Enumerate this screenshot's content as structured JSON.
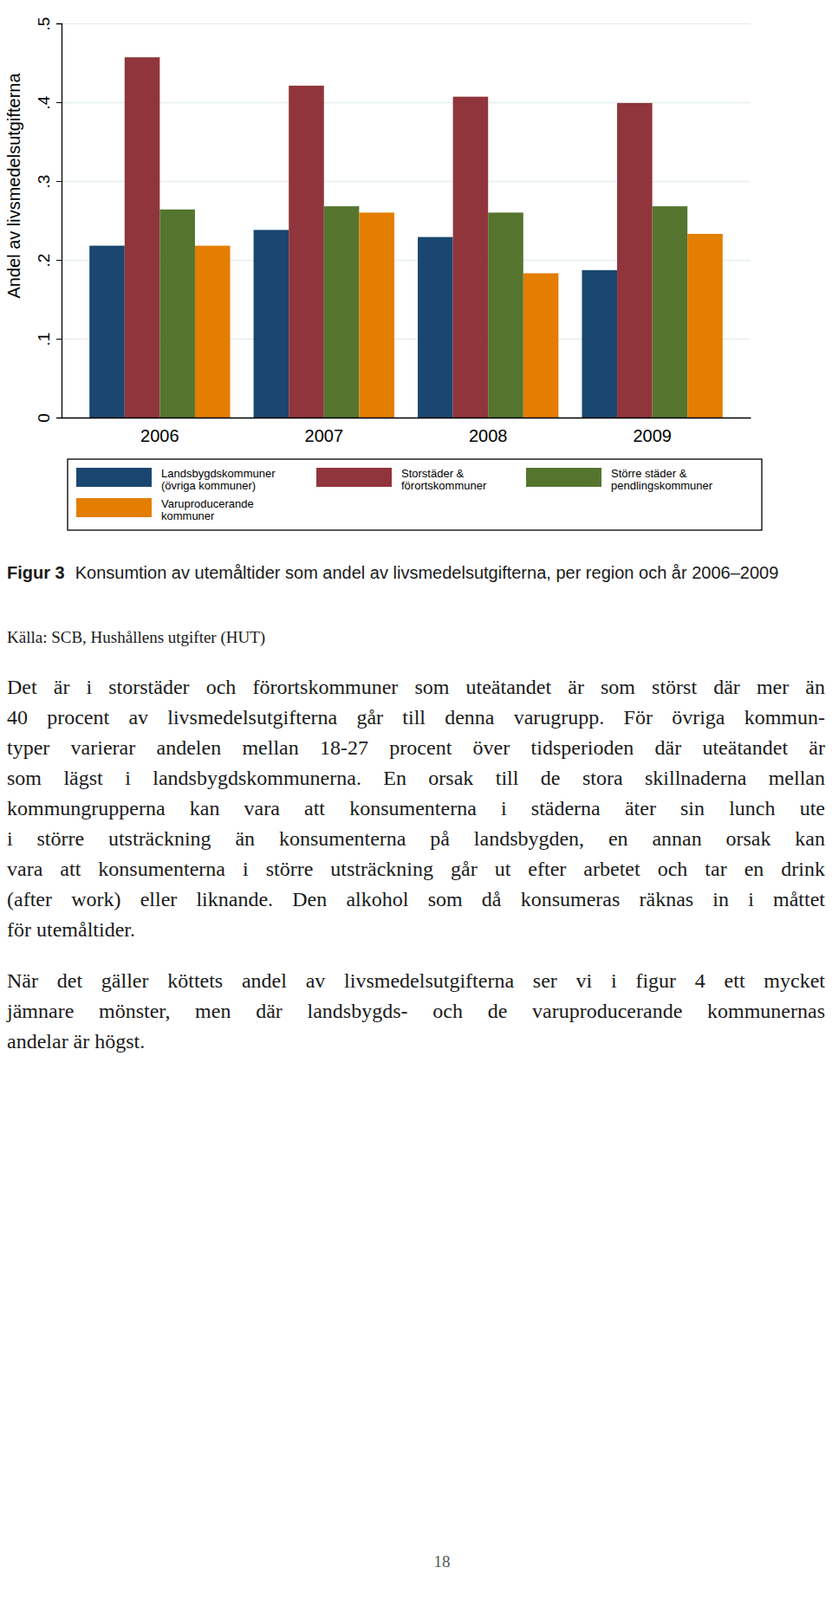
{
  "chart_data": {
    "type": "bar",
    "y_label": "Andel av livsmedelsutgifterna",
    "categories": [
      "2006",
      "2007",
      "2008",
      "2009"
    ],
    "series": [
      {
        "name": "Landsbygdskommuner (övriga kommuner)",
        "color": "#1a476f",
        "values": [
          0.218,
          0.238,
          0.229,
          0.187
        ]
      },
      {
        "name": "Storstäder & förortskommuner",
        "color": "#90353b",
        "values": [
          0.457,
          0.421,
          0.407,
          0.399
        ]
      },
      {
        "name": "Större städer & pendlingskommuner",
        "color": "#55752f",
        "values": [
          0.264,
          0.268,
          0.26,
          0.268
        ]
      },
      {
        "name": "Varuproducerande kommuner",
        "color": "#e37e00",
        "values": [
          0.218,
          0.26,
          0.183,
          0.233
        ]
      }
    ],
    "ylim": [
      0,
      0.5
    ],
    "yticks": [
      0,
      {
        "value": 0.1,
        "label": ".1"
      },
      {
        "value": 0.2,
        "label": ".2"
      },
      {
        "value": 0.3,
        "label": ".3"
      },
      {
        "value": 0.4,
        "label": ".4"
      },
      {
        "value": 0.5,
        "label": ".5"
      }
    ],
    "grid": true,
    "legend": "bottom"
  },
  "document": {
    "caption_label": "Figur 3",
    "caption": "Konsumtion av utemåltider som andel av livsmedelsutgifterna, per region och år 2006–2009",
    "source": "Källa: SCB, Hushållens utgifter (HUT)",
    "paragraphs": [
      [
        "Det är i storstäder och förortskommuner som uteätandet är som störst där mer än",
        "40 procent av livsmedelsutgifterna går till denna varugrupp. För övriga kommun-",
        "typer varierar andelen mellan 18-27 procent över tidsperioden där uteätandet är",
        "som lägst i landsbygdskommunerna. En orsak till de stora skillnaderna mellan",
        "kommungrupperna kan vara att konsumenterna i städerna äter sin lunch ute",
        "i större utsträckning än konsumenterna på landsbygden, en annan orsak kan",
        "vara att konsumenterna i större utsträckning går ut efter arbetet och tar en drink",
        "(after work) eller liknande. Den alkohol som då konsumeras räknas in i måttet",
        "för utemåltider."
      ],
      [
        "När det gäller köttets andel av livsmedelsutgifterna ser vi i figur 4 ett mycket",
        "jämnare mönster, men där landsbygds- och de varuproducerande kommunernas",
        "andelar är högst."
      ]
    ],
    "page_number": "18"
  }
}
